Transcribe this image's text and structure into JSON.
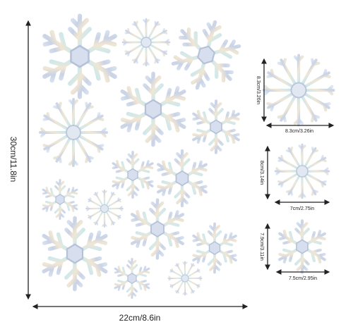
{
  "dimensions": {
    "height": "30cm/11.8in",
    "width": "22cm/8.6in"
  },
  "samples": [
    {
      "height": "8.3cm/3.26in",
      "width": "8.3cm/3.26in"
    },
    {
      "height": "8cm/3.14in",
      "width": "7cm/2.75in"
    },
    {
      "height": "7.9cm/3.11in",
      "width": "7.5cm/2.95in"
    }
  ]
}
